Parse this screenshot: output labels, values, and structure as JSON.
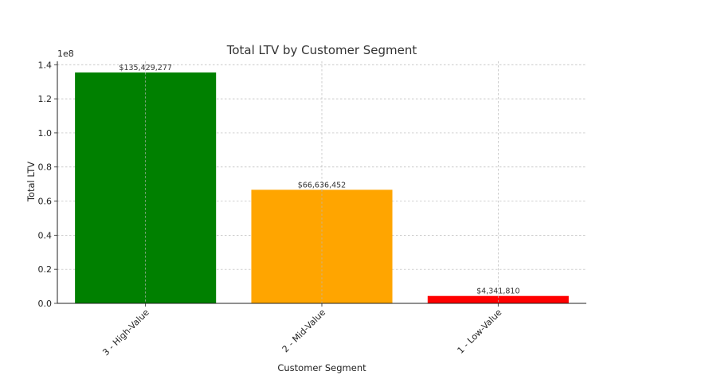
{
  "chart_data": {
    "type": "bar",
    "title": "Total LTV by Customer Segment",
    "xlabel": "Customer Segment",
    "ylabel": "Total LTV",
    "y_offset_label": "1e8",
    "ylim": [
      0,
      142000000.0
    ],
    "yticks": [
      0,
      20000000.0,
      40000000.0,
      60000000.0,
      80000000.0,
      100000000.0,
      120000000.0,
      140000000.0
    ],
    "ytick_labels": [
      "0.0",
      "0.2",
      "0.4",
      "0.6",
      "0.8",
      "1.0",
      "1.2",
      "1.4"
    ],
    "categories": [
      "3 - High-Value",
      "2 - Mid-Value",
      "1 - Low-Value"
    ],
    "values": [
      135429277,
      66636452,
      4341810
    ],
    "value_labels": [
      "$135,429,277",
      "$66,636,452",
      "$4,341,810"
    ],
    "colors": [
      "#008000",
      "#FFA500",
      "#FF0000"
    ],
    "grid": true,
    "xtick_rotation": 45
  }
}
